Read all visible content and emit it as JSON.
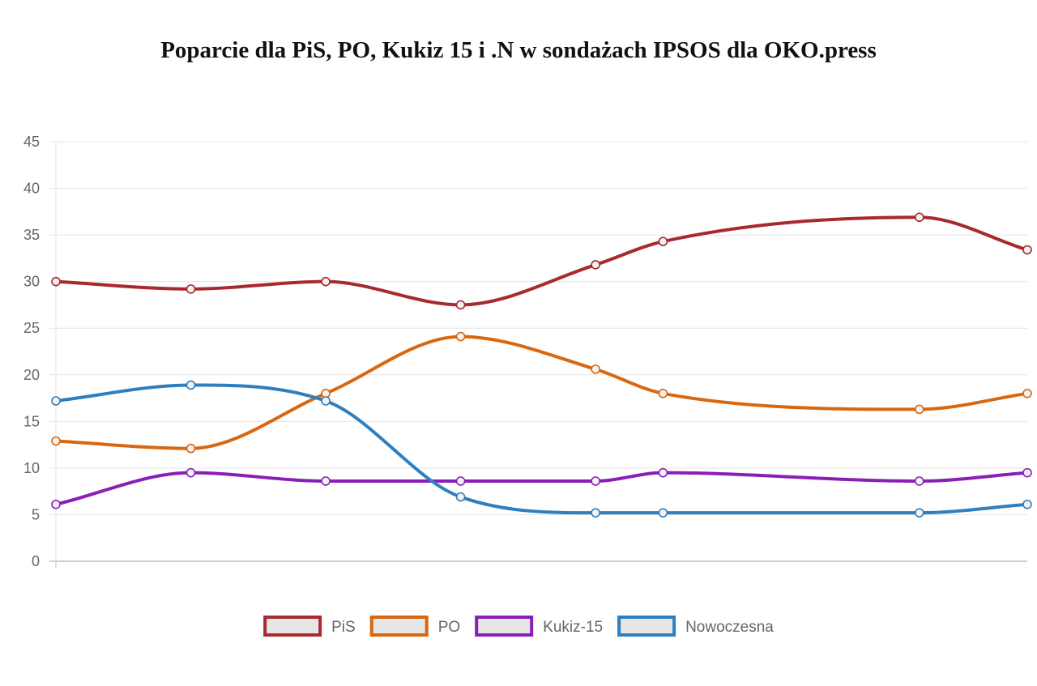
{
  "chart_data": {
    "type": "line",
    "title": "Poparcie dla PiS, PO, Kukiz 15 i .N w sondażach IPSOS dla OKO.press",
    "xlabel": "",
    "ylabel": "",
    "ylim": [
      0,
      45
    ],
    "yticks": [
      0,
      5,
      10,
      15,
      20,
      25,
      30,
      35,
      40,
      45
    ],
    "x": [
      1,
      2,
      3,
      4,
      5,
      6,
      7,
      8
    ],
    "x_positions_relative": [
      0,
      1,
      2,
      3,
      4,
      4.5,
      6.4,
      7.2
    ],
    "grid": true,
    "legend_position": "bottom",
    "series": [
      {
        "name": "PiS",
        "color": "#a8292e",
        "values": [
          30,
          29.2,
          30,
          27.5,
          31.8,
          34.3,
          36.9,
          33.4
        ]
      },
      {
        "name": "PO",
        "color": "#d9670f",
        "values": [
          12.9,
          12.1,
          18,
          24.1,
          20.6,
          18,
          16.3,
          18
        ]
      },
      {
        "name": "Kukiz-15",
        "color": "#8a1fb8",
        "values": [
          6.1,
          9.5,
          8.6,
          8.6,
          8.6,
          9.5,
          8.6,
          9.5
        ]
      },
      {
        "name": "Nowoczesna",
        "color": "#2f7fbf",
        "values": [
          17.2,
          18.9,
          17.2,
          6.9,
          5.2,
          5.2,
          5.2,
          6.1
        ]
      }
    ]
  },
  "style": {
    "grid_color": "#e4e4e4",
    "axis_color": "#bdbdbd",
    "legend_fill": "#e6e6e6"
  }
}
